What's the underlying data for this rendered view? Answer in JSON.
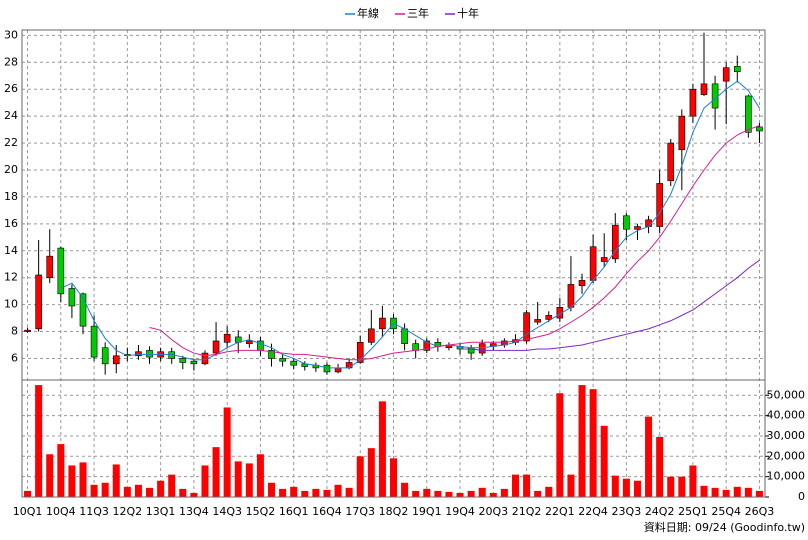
{
  "chart_data": [
    {
      "type": "candlestick",
      "categories": [
        "10Q1",
        null,
        null,
        "10Q4",
        null,
        null,
        "11Q3",
        null,
        null,
        "12Q2",
        null,
        null,
        "13Q1",
        null,
        null,
        "13Q4",
        null,
        null,
        "14Q3",
        null,
        null,
        "15Q2",
        null,
        null,
        "16Q1",
        null,
        null,
        "16Q4",
        null,
        null,
        "17Q3",
        null,
        null,
        "18Q2",
        null,
        null,
        "19Q1",
        null,
        null,
        "19Q4",
        null,
        null,
        "20Q3",
        null,
        null,
        "21Q2",
        null,
        null,
        "22Q1",
        null,
        null,
        "22Q4",
        null,
        null,
        "23Q3",
        null,
        null,
        "24Q2",
        null,
        null,
        "25Q1",
        null,
        null,
        "25Q4",
        null,
        null,
        "26Q3"
      ],
      "open": [
        8.0,
        8.2,
        12.0,
        14.2,
        11.2,
        10.8,
        8.4,
        6.8,
        5.6,
        6.3,
        6.2,
        6.6,
        6.1,
        6.5,
        6.0,
        5.8,
        5.6,
        6.4,
        7.2,
        7.6,
        7.1,
        7.3,
        6.6,
        6.0,
        5.8,
        5.6,
        5.5,
        5.5,
        5.0,
        5.3,
        5.7,
        7.2,
        8.2,
        9.0,
        8.2,
        7.1,
        6.6,
        7.2,
        6.8,
        6.9,
        6.8,
        6.4,
        6.9,
        7.0,
        7.2,
        7.3,
        8.7,
        8.9,
        9.0,
        9.8,
        11.4,
        11.8,
        13.2,
        13.4,
        16.6,
        15.6,
        15.8,
        15.8,
        19.2,
        21.5,
        24.0,
        25.6,
        26.4,
        26.6,
        27.7,
        25.5,
        23.2
      ],
      "high": [
        8.3,
        14.8,
        15.6,
        14.3,
        11.5,
        10.9,
        9.2,
        7.2,
        7.0,
        6.8,
        7.0,
        6.9,
        6.8,
        6.8,
        6.2,
        6.0,
        6.6,
        8.7,
        8.4,
        8.1,
        7.8,
        7.6,
        7.1,
        6.3,
        6.0,
        5.8,
        5.7,
        5.7,
        5.6,
        6.0,
        7.7,
        9.6,
        9.9,
        9.3,
        8.6,
        7.4,
        7.5,
        7.5,
        7.2,
        7.1,
        7.0,
        7.4,
        7.3,
        7.5,
        7.8,
        9.6,
        10.2,
        9.5,
        10.5,
        13.6,
        12.3,
        15.2,
        15.3,
        16.8,
        16.8,
        16.0,
        16.6,
        20.0,
        22.3,
        24.5,
        26.4,
        30.2,
        27.0,
        28.0,
        28.5,
        25.6,
        23.5
      ],
      "low": [
        7.9,
        8.0,
        11.6,
        10.2,
        9.0,
        7.8,
        5.8,
        4.8,
        4.9,
        5.8,
        5.9,
        5.6,
        5.8,
        5.6,
        5.2,
        5.1,
        5.5,
        6.2,
        6.8,
        6.4,
        6.8,
        6.2,
        5.4,
        5.4,
        5.2,
        5.1,
        5.0,
        4.8,
        4.9,
        5.2,
        5.6,
        7.0,
        7.6,
        7.8,
        6.6,
        6.0,
        6.4,
        6.5,
        6.6,
        6.3,
        5.9,
        6.2,
        6.6,
        6.8,
        7.0,
        7.1,
        8.5,
        8.7,
        8.7,
        9.5,
        10.8,
        11.6,
        12.8,
        13.1,
        14.8,
        14.8,
        15.3,
        15.3,
        18.8,
        18.5,
        23.5,
        25.5,
        23.0,
        23.4,
        26.5,
        22.4,
        22.0
      ],
      "close": [
        8.1,
        12.2,
        13.6,
        10.8,
        9.9,
        8.4,
        6.1,
        5.6,
        6.2,
        6.2,
        6.5,
        6.1,
        6.5,
        6.0,
        5.7,
        5.6,
        6.4,
        7.3,
        7.8,
        7.2,
        7.3,
        6.6,
        6.0,
        5.8,
        5.5,
        5.4,
        5.3,
        5.0,
        5.3,
        5.7,
        7.2,
        8.2,
        9.0,
        8.2,
        7.1,
        6.6,
        7.3,
        6.9,
        7.0,
        6.7,
        6.4,
        7.1,
        7.1,
        7.3,
        7.4,
        9.4,
        8.9,
        9.2,
        9.8,
        11.5,
        11.8,
        14.3,
        13.5,
        15.9,
        15.6,
        15.8,
        16.3,
        19.0,
        22.0,
        24.0,
        26.0,
        26.4,
        24.6,
        27.6,
        27.3,
        22.8,
        22.9
      ],
      "up_color": "#ff0000",
      "down_color": "#00cc00",
      "series": [
        {
          "name": "年線",
          "color": "#1e7fd8",
          "values": [
            null,
            null,
            null,
            11.2,
            11.6,
            10.5,
            8.8,
            7.5,
            6.6,
            6.2,
            6.3,
            6.3,
            6.3,
            6.3,
            6.1,
            5.9,
            5.9,
            6.3,
            6.8,
            7.2,
            7.4,
            7.1,
            6.8,
            6.3,
            6.0,
            5.6,
            5.5,
            5.3,
            5.3,
            5.3,
            5.9,
            6.7,
            7.6,
            8.6,
            8.2,
            7.7,
            7.2,
            6.9,
            7.0,
            6.9,
            6.8,
            6.8,
            6.9,
            7.0,
            7.2,
            7.8,
            8.3,
            8.8,
            9.3,
            9.8,
            10.6,
            11.8,
            12.8,
            14.0,
            15.0,
            15.5,
            15.8,
            16.8,
            18.2,
            20.3,
            22.8,
            24.6,
            25.3,
            26.0,
            26.6,
            25.9,
            24.6
          ]
        },
        {
          "name": "三年",
          "color": "#d81e8c",
          "values": [
            null,
            null,
            null,
            null,
            null,
            null,
            null,
            null,
            null,
            null,
            null,
            8.3,
            8.1,
            7.4,
            6.8,
            6.4,
            6.2,
            6.3,
            6.5,
            6.6,
            6.6,
            6.6,
            6.5,
            6.4,
            6.3,
            6.3,
            6.2,
            6.1,
            6.0,
            5.9,
            5.9,
            6.0,
            6.2,
            6.4,
            6.5,
            6.6,
            6.7,
            6.9,
            7.0,
            7.1,
            7.2,
            7.2,
            7.2,
            7.2,
            7.3,
            7.4,
            7.6,
            7.8,
            8.2,
            8.7,
            9.2,
            9.8,
            10.5,
            11.3,
            12.3,
            13.2,
            14.0,
            15.0,
            16.2,
            17.5,
            18.8,
            20.0,
            21.1,
            22.0,
            22.6,
            23.0,
            23.3
          ]
        },
        {
          "name": "十年",
          "color": "#7a28c8",
          "values": [
            null,
            null,
            null,
            null,
            null,
            null,
            null,
            null,
            null,
            null,
            null,
            null,
            null,
            null,
            null,
            null,
            null,
            null,
            null,
            null,
            null,
            null,
            null,
            null,
            null,
            null,
            null,
            null,
            null,
            null,
            null,
            null,
            null,
            null,
            null,
            null,
            null,
            null,
            null,
            6.7,
            6.7,
            6.6,
            6.6,
            6.6,
            6.6,
            6.6,
            6.7,
            6.7,
            6.8,
            6.9,
            7.0,
            7.2,
            7.4,
            7.6,
            7.8,
            8.0,
            8.2,
            8.5,
            8.8,
            9.2,
            9.6,
            10.2,
            10.8,
            11.4,
            12.0,
            12.7,
            13.3
          ]
        }
      ],
      "ylim": [
        4.4,
        30.4
      ],
      "yticks": [
        6,
        8,
        10,
        12,
        14,
        16,
        18,
        20,
        22,
        24,
        26,
        28,
        30
      ],
      "grid": true,
      "legend": "top"
    },
    {
      "type": "bar",
      "color": "#ff0000",
      "values": [
        3000,
        55000,
        21000,
        26000,
        15500,
        17000,
        6000,
        7000,
        16000,
        5000,
        6000,
        4500,
        8000,
        11000,
        4000,
        2000,
        15500,
        24500,
        44000,
        17500,
        16500,
        21000,
        7000,
        4000,
        5000,
        3000,
        4000,
        3500,
        6000,
        4500,
        20000,
        24000,
        47000,
        19000,
        7000,
        3000,
        4000,
        3000,
        2500,
        2000,
        3000,
        4500,
        2000,
        4000,
        11000,
        11000,
        3000,
        5000,
        51000,
        11000,
        55000,
        53000,
        35000,
        10500,
        9000,
        8000,
        39500,
        29500,
        10000,
        10000,
        15500,
        5500,
        4500,
        3500,
        5000,
        4500,
        3000
      ],
      "ylim": [
        0,
        57500
      ],
      "yticks": [
        0,
        {
          "value": 10000,
          "label": "10,000"
        },
        {
          "value": 20000,
          "label": "20,000"
        },
        {
          "value": 30000,
          "label": "30,000"
        },
        {
          "value": 40000,
          "label": "40,000"
        },
        {
          "value": 50000,
          "label": "50,000"
        }
      ],
      "grid": true
    }
  ],
  "footer": "資料日期: 09/24 (Goodinfo.tw)"
}
